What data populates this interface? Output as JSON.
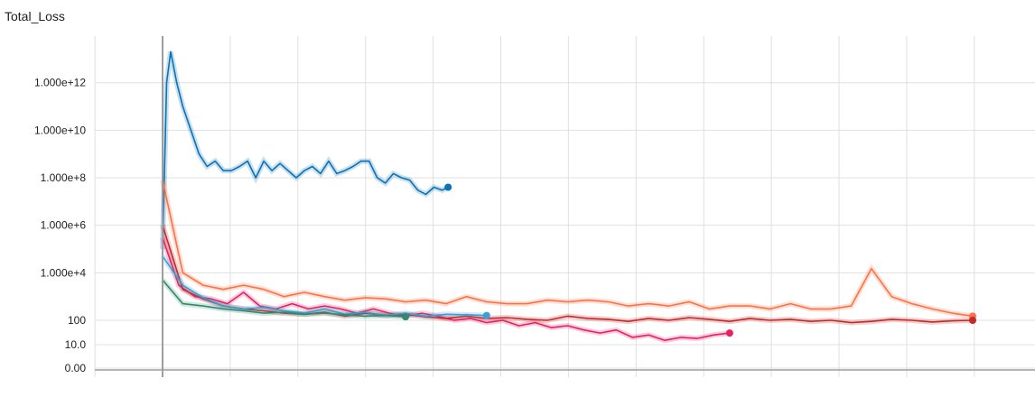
{
  "chart_data": {
    "type": "line",
    "title": "Total_Loss",
    "y_scale": "log-like",
    "y_ticks": [
      "0.00",
      "10.0",
      "100",
      "1.000e+4",
      "1.000e+6",
      "1.000e+8",
      "1.000e+10",
      "1.000e+12"
    ],
    "grid": true,
    "series": [
      {
        "color": "#0b72b5",
        "x": [
          0,
          0.1,
          0.2,
          0.35,
          0.5,
          0.7,
          0.9,
          1.1,
          1.3,
          1.5,
          1.7,
          1.9,
          2.1,
          2.3,
          2.5,
          2.7,
          2.9,
          3.1,
          3.3,
          3.5,
          3.7,
          3.9,
          4.1,
          4.3,
          4.5,
          4.7,
          4.9,
          5.1,
          5.3,
          5.5,
          5.7,
          5.9,
          6.1,
          6.3,
          6.5,
          6.7,
          6.9,
          7.05
        ],
        "values": [
          100000.0,
          1000000000000.0,
          20000000000000.0,
          1000000000000.0,
          100000000000.0,
          10000000000.0,
          1000000000.0,
          300000000.0,
          500000000.0,
          200000000.0,
          200000000.0,
          300000000.0,
          500000000.0,
          100000000.0,
          500000000.0,
          200000000.0,
          400000000.0,
          200000000.0,
          100000000.0,
          200000000.0,
          300000000.0,
          150000000.0,
          500000000.0,
          150000000.0,
          200000000.0,
          300000000.0,
          500000000.0,
          500000000.0,
          100000000.0,
          60000000.0,
          150000000.0,
          100000000.0,
          80000000.0,
          30000000.0,
          20000000.0,
          40000000.0,
          30000000.0,
          40000000.0
        ]
      },
      {
        "color": "#ff7043",
        "x": [
          0,
          0.5,
          1,
          1.5,
          2,
          2.5,
          3,
          3.5,
          4,
          4.5,
          5,
          5.5,
          6,
          6.5,
          7,
          7.5,
          8,
          8.5,
          9,
          9.5,
          10,
          10.5,
          11,
          11.5,
          12,
          12.5,
          13,
          13.5,
          14,
          14.5,
          15,
          15.5,
          16,
          16.5,
          17,
          17.5,
          18,
          18.5,
          19,
          19.5,
          20
        ],
        "values": [
          80000000.0,
          10000.0,
          3000.0,
          2000.0,
          3000.0,
          2000.0,
          1000.0,
          1500.0,
          1000.0,
          700,
          900,
          800,
          600,
          700,
          500,
          1000.0,
          600,
          500,
          500,
          700,
          600,
          700,
          600,
          400,
          500,
          400,
          600,
          300,
          400,
          400,
          300,
          500,
          300,
          300,
          400,
          15000.0,
          1000.0,
          500,
          300,
          200,
          150
        ]
      },
      {
        "color": "#e91e63",
        "x": [
          0,
          0.4,
          0.8,
          1.2,
          1.6,
          2,
          2.4,
          2.8,
          3.2,
          3.6,
          4,
          4.4,
          4.8,
          5.2,
          5.6,
          6,
          6.4,
          6.8,
          7.2,
          7.6,
          8,
          8.4,
          8.8,
          9.2,
          9.6,
          10,
          10.4,
          10.8,
          11.2,
          11.6,
          12,
          12.4,
          12.8,
          13.2,
          13.6,
          14
        ],
        "values": [
          300000.0,
          3000.0,
          1000.0,
          800,
          500,
          1500.0,
          400,
          300,
          500,
          300,
          400,
          300,
          200,
          300,
          200,
          150,
          200,
          150,
          100,
          120,
          80,
          100,
          60,
          80,
          50,
          60,
          40,
          30,
          40,
          20,
          25,
          15,
          20,
          18,
          25,
          30
        ]
      },
      {
        "color": "#c62828",
        "x": [
          0,
          0.5,
          1,
          1.5,
          2,
          2.5,
          3,
          3.5,
          4,
          4.5,
          5,
          5.5,
          6,
          6.5,
          7,
          7.5,
          8,
          8.5,
          9,
          9.5,
          10,
          10.5,
          11,
          11.5,
          12,
          12.5,
          13,
          13.5,
          14,
          14.5,
          15,
          15.5,
          16,
          16.5,
          17,
          17.5,
          18,
          18.5,
          19,
          19.5,
          20
        ],
        "values": [
          1000000.0,
          2000.0,
          800,
          400,
          300,
          250,
          200,
          180,
          220,
          150,
          200,
          160,
          180,
          140,
          120,
          150,
          120,
          130,
          110,
          100,
          150,
          120,
          110,
          90,
          120,
          100,
          130,
          110,
          90,
          120,
          100,
          110,
          90,
          100,
          80,
          90,
          110,
          100,
          85,
          95,
          100
        ]
      },
      {
        "color": "#3a9fd6",
        "x": [
          0,
          0.5,
          1,
          1.5,
          2,
          2.5,
          3,
          3.5,
          4,
          4.5,
          5,
          5.5,
          6,
          6.5,
          7,
          7.5,
          8
        ],
        "values": [
          50000.0,
          3000.0,
          900,
          400,
          300,
          350,
          250,
          200,
          300,
          180,
          220,
          160,
          200,
          150,
          180,
          170,
          160
        ]
      },
      {
        "color": "#2e8b6f",
        "x": [
          0,
          0.5,
          1,
          1.5,
          2,
          2.5,
          3,
          3.5,
          4,
          4.5,
          5,
          5.5,
          6
        ],
        "values": [
          5000.0,
          500,
          400,
          300,
          250,
          200,
          220,
          180,
          200,
          170,
          150,
          160,
          140
        ]
      }
    ]
  },
  "colors": {
    "grid": "#e0e0e0",
    "axis": "#9e9e9e",
    "text": "#212121"
  }
}
